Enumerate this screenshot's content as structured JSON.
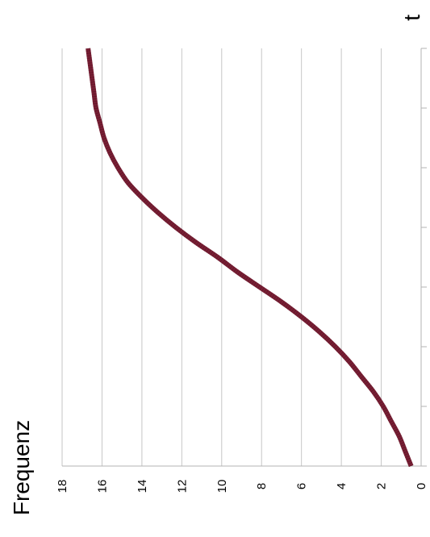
{
  "chart_data": {
    "type": "line",
    "title": "",
    "xlabel": "t",
    "ylabel": "Frequenz",
    "orientation": "rotated-90-clockwise",
    "ylim": [
      0,
      18
    ],
    "y_ticks": [
      "0",
      "2",
      "4",
      "6",
      "8",
      "10",
      "12",
      "14",
      "16",
      "18"
    ],
    "x_range": [
      0,
      7
    ],
    "x_tick_count": 8,
    "x_tick_labels_shown": false,
    "grid": "value-axis major gridlines",
    "legend": "none",
    "series": [
      {
        "color": "#7a1f35",
        "x": [
          0,
          0.25,
          0.5,
          0.75,
          1,
          1.25,
          1.5,
          1.75,
          2,
          2.25,
          2.5,
          2.75,
          3,
          3.25,
          3.5,
          3.75,
          4,
          4.25,
          4.5,
          4.75,
          5,
          5.25,
          5.5,
          5.75,
          6,
          6.25,
          6.5,
          6.75,
          7
        ],
        "values": [
          0.5,
          0.8,
          1.1,
          1.5,
          1.9,
          2.4,
          3.0,
          3.6,
          4.3,
          5.1,
          6.0,
          7.0,
          8.1,
          9.2,
          10.2,
          11.3,
          12.3,
          13.2,
          14.0,
          14.7,
          15.2,
          15.6,
          15.9,
          16.1,
          16.3,
          16.4,
          16.5,
          16.6,
          16.7
        ]
      }
    ],
    "colors": {
      "line": "#7a1f35",
      "grid": "#c6c6c6",
      "axis": "#b3b3b3",
      "text": "#000000"
    }
  }
}
